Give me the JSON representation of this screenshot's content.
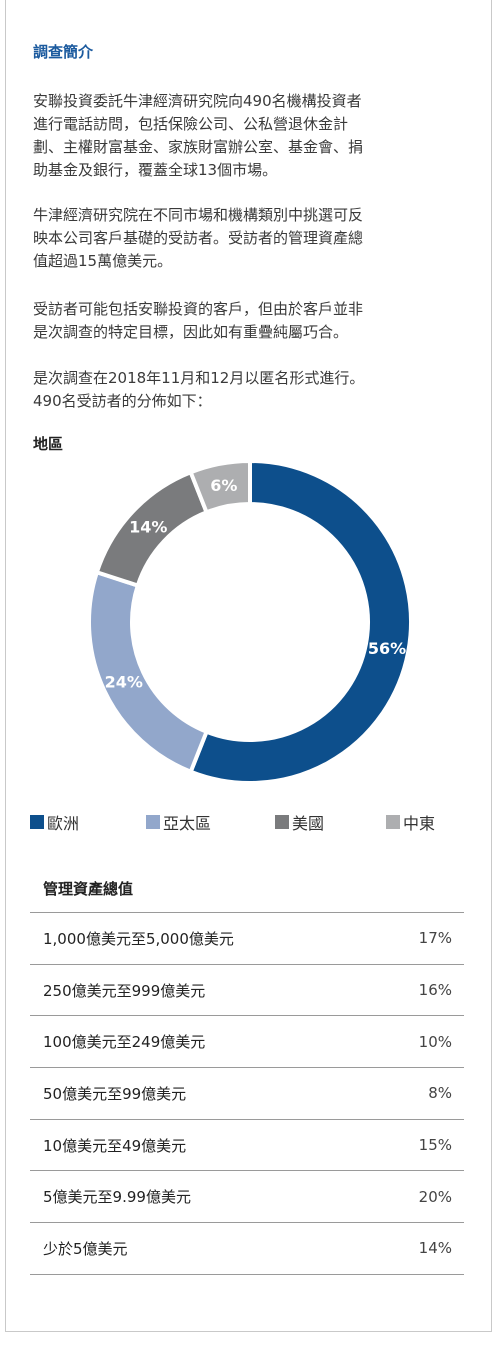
{
  "intro": {
    "title": "調查簡介",
    "p1_lines": [
      "安聯投資委託牛津經濟研究院向490名機構投資者",
      "進行電話訪問，包括保險公司、公私營退休金計",
      "劃、主權財富基金、家族財富辦公室、基金會、捐",
      "助基金及銀行，覆蓋全球13個市場。"
    ],
    "p2_lines": [
      "牛津經濟研究院在不同市場和機構類別中挑選可反",
      "映本公司客戶基礎的受訪者。受訪者的管理資產總",
      "值超過15萬億美元。"
    ],
    "p3_lines": [
      "受訪者可能包括安聯投資的客戶，但由於客戶並非",
      "是次調查的特定目標，因此如有重疊純屬巧合。"
    ],
    "p4_lines": [
      "是次調查在2018年11月和12月以匿名形式進行。",
      "490名受訪者的分佈如下："
    ]
  },
  "chart_data": {
    "type": "pie",
    "title": "地區",
    "categories": [
      "歐洲",
      "亞太區",
      "美國",
      "中東"
    ],
    "values": [
      56,
      24,
      14,
      6
    ],
    "labels": [
      "56%",
      "24%",
      "14%",
      "6%"
    ],
    "colors": [
      "#0d4f8c",
      "#92a7cb",
      "#7a7b7d",
      "#adaeb0"
    ],
    "legend_position": "bottom",
    "donut": true
  },
  "aum_table": {
    "title": "管理資產總值",
    "rows": [
      {
        "label": "1,000億美元至5,000億美元",
        "value": "17%"
      },
      {
        "label": "250億美元至999億美元",
        "value": "16%"
      },
      {
        "label": "100億美元至249億美元",
        "value": "10%"
      },
      {
        "label": "50億美元至99億美元",
        "value": "8%"
      },
      {
        "label": "10億美元至49億美元",
        "value": "15%"
      },
      {
        "label": "5億美元至9.99億美元",
        "value": "20%"
      },
      {
        "label": "少於5億美元",
        "value": "14%"
      }
    ]
  }
}
